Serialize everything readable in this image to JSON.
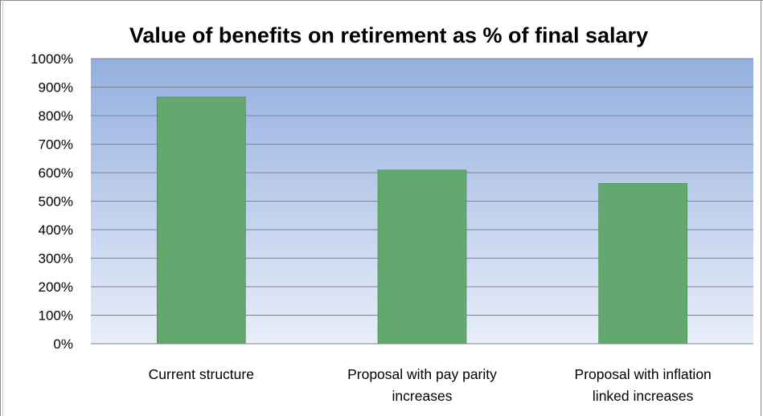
{
  "chart_data": {
    "type": "bar",
    "title": "Value of benefits on retirement as % of final salary",
    "xlabel": "",
    "ylabel": "",
    "categories": [
      [
        "Current structure"
      ],
      [
        "Proposal with pay parity",
        "increases"
      ],
      [
        "Proposal with inflation",
        "linked increases"
      ]
    ],
    "values": [
      865,
      609,
      562
    ],
    "ylim": [
      0,
      1000
    ],
    "ytick_step": 100,
    "ytick_suffix": "%",
    "grid": true,
    "legend": "none",
    "colors": {
      "bar": "#63a86f",
      "bar_edge": "#4f9059",
      "plot_top": "#94afdf",
      "plot_bottom": "#e8eef9",
      "grid": "#7b8496",
      "axis": "#7b8496"
    }
  }
}
